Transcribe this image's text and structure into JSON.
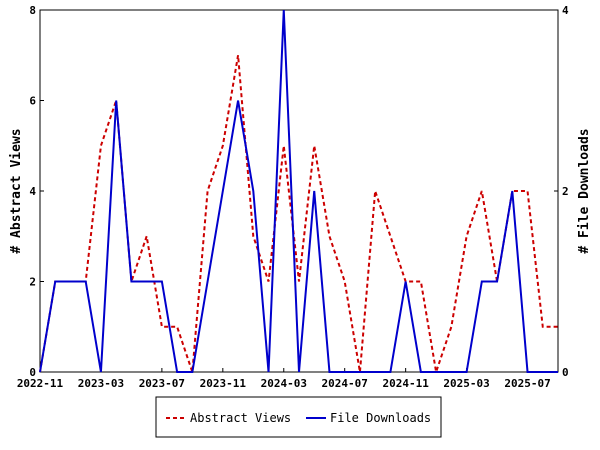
{
  "chart_data": {
    "type": "line",
    "categories": [
      "2022-11",
      null,
      null,
      null,
      "2023-03",
      null,
      null,
      null,
      "2023-07",
      null,
      null,
      null,
      "2023-11",
      null,
      null,
      null,
      "2024-03",
      null,
      null,
      null,
      "2024-07",
      null,
      null,
      null,
      "2024-11",
      null,
      null,
      null,
      "2025-03",
      null,
      null,
      null,
      "2025-07",
      null,
      null
    ],
    "series": [
      {
        "name": "Abstract Views",
        "color": "#cc0000",
        "axis": "y",
        "values": [
          0,
          2,
          2,
          2,
          5,
          6,
          2,
          3,
          1,
          1,
          0,
          4,
          5,
          7,
          3,
          2,
          5,
          2,
          5,
          3,
          2,
          0,
          4,
          3,
          2,
          2,
          0,
          1,
          3,
          4,
          2,
          4,
          4,
          1,
          1
        ]
      },
      {
        "name": "File Downloads",
        "color": "#0000cc",
        "axis": "y2",
        "values": [
          0,
          1,
          1,
          1,
          0,
          3,
          1,
          1,
          1,
          0,
          0,
          1,
          2,
          3,
          2,
          0,
          4,
          0,
          2,
          0,
          0,
          0,
          0,
          0,
          1,
          0,
          0,
          0,
          0,
          1,
          1,
          2,
          0,
          0,
          0
        ]
      }
    ],
    "ylabel": "# Abstract Views",
    "y2label": "# File Downloads",
    "ylim": [
      0,
      8
    ],
    "yticks": [
      0,
      2,
      4,
      6,
      8
    ],
    "y2lim": [
      0,
      4
    ],
    "y2ticks": [
      0,
      2,
      4
    ],
    "legend": "bottom"
  }
}
